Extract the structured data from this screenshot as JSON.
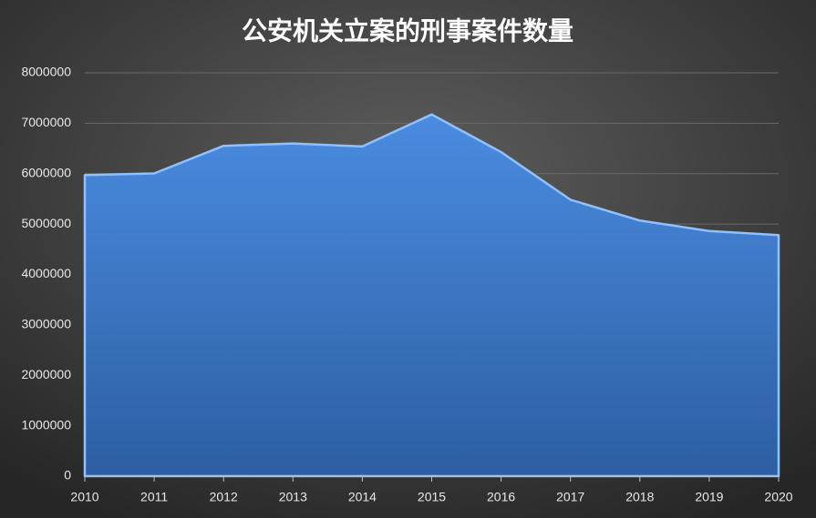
{
  "chart_data": {
    "type": "area",
    "title": "公安机关立案的刑事案件数量",
    "categories": [
      "2010",
      "2011",
      "2012",
      "2013",
      "2014",
      "2015",
      "2016",
      "2017",
      "2018",
      "2019",
      "2020"
    ],
    "values": [
      5969892,
      6004951,
      6551440,
      6598247,
      6539692,
      7174037,
      6427533,
      5482570,
      5069242,
      4862443,
      4780624
    ],
    "color": "#3f7fd0",
    "ylim": [
      0,
      8000000
    ],
    "yticks": [
      0,
      1000000,
      2000000,
      3000000,
      4000000,
      5000000,
      6000000,
      7000000,
      8000000
    ],
    "grid": true
  }
}
